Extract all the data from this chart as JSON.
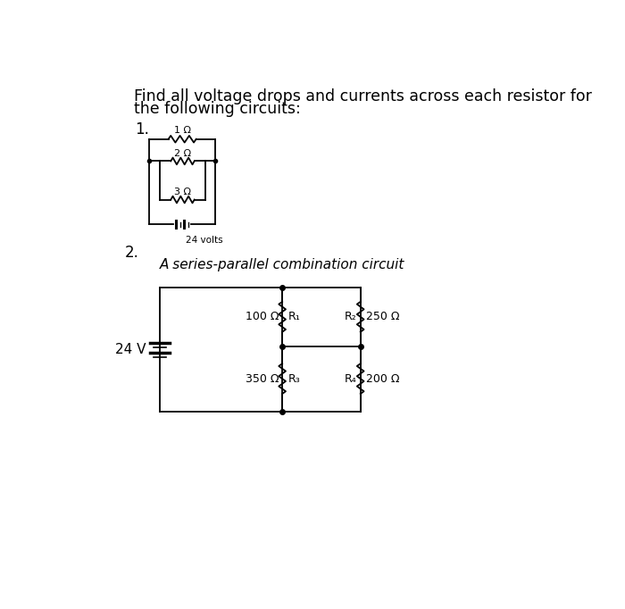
{
  "title_line1": "Find all voltage drops and currents across each resistor for",
  "title_line2": "the following circuits:",
  "background_color": "#ffffff",
  "circuit1": {
    "label": "1.",
    "r1": "1 Ω",
    "r2": "2 Ω",
    "r3": "3 Ω",
    "battery_label": "24 volts"
  },
  "circuit2": {
    "label": "2.",
    "subtitle": "A series-parallel combination circuit",
    "battery_label": "24 V",
    "r1_label": "100 Ω",
    "r1_name": "R₁",
    "r2_name": "R₂",
    "r2_label": "250 Ω",
    "r3_label": "350 Ω",
    "r3_name": "R₃",
    "r4_name": "R₄",
    "r4_label": "200 Ω"
  }
}
